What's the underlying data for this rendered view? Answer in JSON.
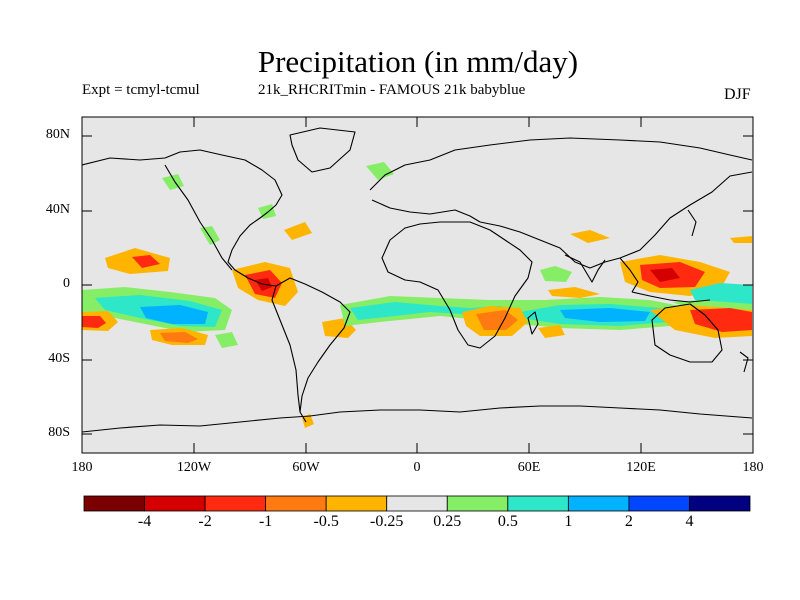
{
  "title": "Precipitation (in mm/day)",
  "expt": "Expt = tcmyl-tcmul",
  "runs": "21k_RHCRITmin - FAMOUS 21k babyblue",
  "season": "DJF",
  "lat_labels": [
    "80N",
    "40N",
    "0",
    "40S",
    "80S"
  ],
  "lon_labels": [
    "180",
    "120W",
    "60W",
    "0",
    "60E",
    "120E",
    "180"
  ],
  "colorbar": {
    "colors": [
      "#7a0000",
      "#d40000",
      "#ff2a10",
      "#ff7a10",
      "#ffb400",
      "#e6e6e6",
      "#86ee66",
      "#2ee6c8",
      "#00b2ff",
      "#0046ff",
      "#000080"
    ],
    "labels": [
      "-4",
      "-2",
      "-1",
      "-0.5",
      "-0.25",
      "0.25",
      "0.5",
      "1",
      "2",
      "4"
    ]
  },
  "colors": {
    "background": "#e6e6e6",
    "coast": "#000000"
  }
}
